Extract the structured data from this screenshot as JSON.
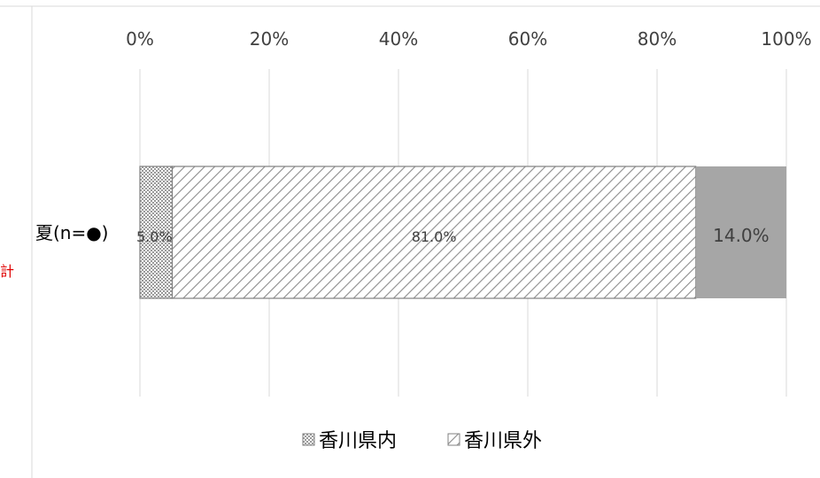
{
  "chart_data": {
    "type": "bar",
    "orientation": "horizontal",
    "stacked": "percent",
    "categories": [
      "夏(n=●)"
    ],
    "series": [
      {
        "name": "香川県内",
        "values": [
          5.0
        ],
        "labels": [
          "5.0%"
        ],
        "pattern": "crosshatch"
      },
      {
        "name": "香川県外",
        "values": [
          81.0
        ],
        "labels": [
          "81.0%"
        ],
        "pattern": "diagonal"
      },
      {
        "name": "",
        "values": [
          14.0
        ],
        "labels": [
          "14.0%"
        ],
        "color": "#a6a6a6"
      }
    ],
    "x_ticks": [
      "0%",
      "20%",
      "40%",
      "60%",
      "80%",
      "100%"
    ],
    "xlim": [
      0,
      100
    ],
    "x_axis_position": "top",
    "grid": true,
    "legend_placement": "bottom"
  },
  "side_text": "集計"
}
